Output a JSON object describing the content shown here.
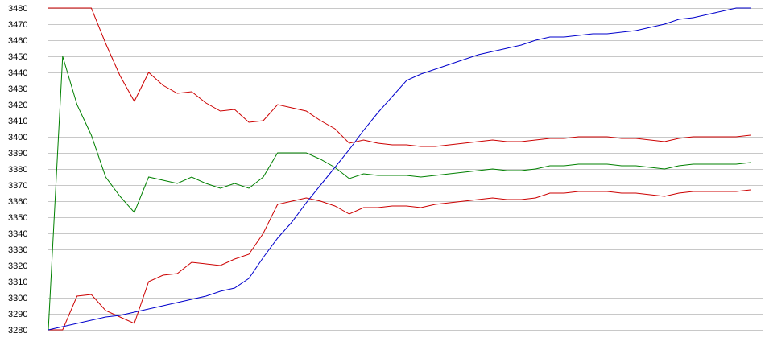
{
  "chart_data": {
    "type": "line",
    "title": "",
    "xlabel": "",
    "ylabel": "",
    "ylim": [
      3280,
      3480
    ],
    "ytick_step": 10,
    "grid": true,
    "legend": "none",
    "x": [
      1,
      2,
      3,
      4,
      5,
      6,
      7,
      8,
      9,
      10,
      11,
      12,
      13,
      14,
      15,
      16,
      17,
      18,
      19,
      20,
      21,
      22,
      23,
      24,
      25,
      26,
      27,
      28,
      29,
      30,
      31,
      32,
      33,
      34,
      35,
      36,
      37,
      38,
      39,
      40,
      41,
      42,
      43,
      44,
      45,
      46,
      47,
      48,
      49,
      50
    ],
    "series": [
      {
        "color": "#cc0000",
        "values": [
          3480,
          3480,
          3480,
          3480,
          3458,
          3438,
          3422,
          3440,
          3432,
          3427,
          3428,
          3421,
          3416,
          3417,
          3409,
          3410,
          3420,
          3418,
          3416,
          3410,
          3405,
          3396,
          3398,
          3396,
          3395,
          3395,
          3394,
          3394,
          3395,
          3396,
          3397,
          3398,
          3397,
          3397,
          3398,
          3399,
          3399,
          3400,
          3400,
          3400,
          3399,
          3399,
          3398,
          3397,
          3399,
          3400,
          3400,
          3400,
          3400,
          3401
        ]
      },
      {
        "color": "#cc0000",
        "values": [
          3280,
          3280,
          3301,
          3302,
          3292,
          3288,
          3284,
          3310,
          3314,
          3315,
          3322,
          3321,
          3320,
          3324,
          3327,
          3340,
          3358,
          3360,
          3362,
          3360,
          3357,
          3352,
          3356,
          3356,
          3357,
          3357,
          3356,
          3358,
          3359,
          3360,
          3361,
          3362,
          3361,
          3361,
          3362,
          3365,
          3365,
          3366,
          3366,
          3366,
          3365,
          3365,
          3364,
          3363,
          3365,
          3366,
          3366,
          3366,
          3366,
          3367
        ]
      },
      {
        "color": "#008000",
        "values": [
          3280,
          3450,
          3420,
          3401,
          3375,
          3363,
          3353,
          3375,
          3373,
          3371,
          3375,
          3371,
          3368,
          3371,
          3368,
          3375,
          3390,
          3390,
          3390,
          3386,
          3381,
          3374,
          3377,
          3376,
          3376,
          3376,
          3375,
          3376,
          3377,
          3378,
          3379,
          3380,
          3379,
          3379,
          3380,
          3382,
          3382,
          3383,
          3383,
          3383,
          3382,
          3382,
          3381,
          3380,
          3382,
          3383,
          3383,
          3383,
          3383,
          3384
        ]
      },
      {
        "color": "#0000cc",
        "values": [
          3280,
          3282,
          3284,
          3286,
          3288,
          3289,
          3291,
          3293,
          3295,
          3297,
          3299,
          3301,
          3304,
          3306,
          3312,
          3325,
          3337,
          3347,
          3359,
          3370,
          3381,
          3392,
          3404,
          3415,
          3425,
          3435,
          3439,
          3442,
          3445,
          3448,
          3451,
          3453,
          3455,
          3457,
          3460,
          3462,
          3462,
          3463,
          3464,
          3464,
          3465,
          3466,
          3468,
          3470,
          3473,
          3474,
          3476,
          3478,
          3480,
          3480
        ]
      }
    ]
  }
}
